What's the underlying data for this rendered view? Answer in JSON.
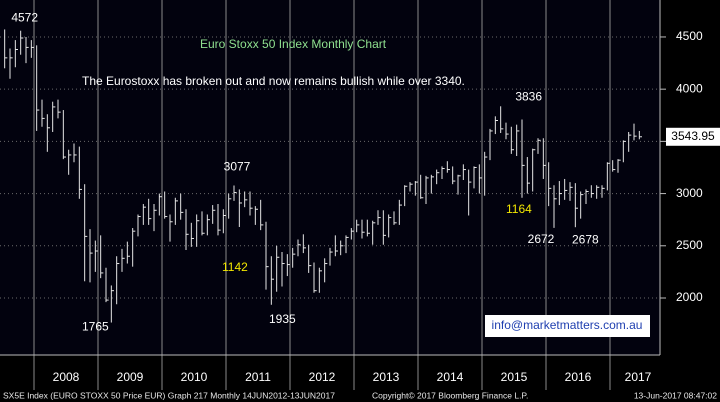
{
  "chart_data": {
    "type": "hlc",
    "title": "Euro Stoxx 50 Index Monthly Chart",
    "annotations": [
      "The Eurostoxx has broken out and now remains bullish while over 3340.",
      "1142",
      "1164"
    ],
    "color": "#e6e6e6",
    "categories": [
      null,
      null,
      null,
      null,
      null,
      null,
      "2008",
      null,
      null,
      null,
      null,
      null,
      null,
      null,
      null,
      null,
      null,
      null,
      "2009",
      null,
      null,
      null,
      null,
      null,
      null,
      null,
      null,
      null,
      null,
      null,
      "2010",
      null,
      null,
      null,
      null,
      null,
      null,
      null,
      null,
      null,
      null,
      null,
      "2011",
      null,
      null,
      null,
      null,
      null,
      null,
      null,
      null,
      null,
      null,
      null,
      "2012",
      null,
      null,
      null,
      null,
      null,
      null,
      null,
      null,
      null,
      null,
      null,
      "2013",
      null,
      null,
      null,
      null,
      null,
      null,
      null,
      null,
      null,
      null,
      null,
      "2014",
      null,
      null,
      null,
      null,
      null,
      null,
      null,
      null,
      null,
      null,
      null,
      "2015",
      null,
      null,
      null,
      null,
      null,
      null,
      null,
      null,
      null,
      null,
      null,
      "2016",
      null,
      null,
      null,
      null,
      null,
      null,
      null,
      null,
      null,
      null,
      null,
      "2017",
      null,
      null,
      null,
      null,
      null
    ],
    "high": [
      4572,
      4390,
      4470,
      4560,
      4500,
      4470,
      4420,
      3900,
      3760,
      3880,
      3900,
      3800,
      3420,
      3480,
      3450,
      3090,
      2660,
      2550,
      2600,
      2290,
      2120,
      2400,
      2470,
      2540,
      2670,
      2800,
      2900,
      2950,
      2900,
      3000,
      3020,
      2800,
      2960,
      3000,
      2850,
      2720,
      2800,
      2830,
      2800,
      2890,
      2900,
      2850,
      3000,
      3077,
      3040,
      3020,
      3020,
      2880,
      2940,
      2730,
      2400,
      2500,
      2440,
      2420,
      2480,
      2560,
      2610,
      2510,
      2340,
      2290,
      2380,
      2480,
      2600,
      2550,
      2600,
      2670,
      2750,
      2750,
      2750,
      2740,
      2840,
      2840,
      2800,
      2830,
      2940,
      3080,
      3110,
      3120,
      3180,
      3170,
      3180,
      3230,
      3260,
      3310,
      3260,
      3180,
      3280,
      3230,
      3260,
      3280,
      3400,
      3620,
      3740,
      3836,
      3680,
      3640,
      3660,
      3710,
      3350,
      3430,
      3530,
      3530,
      3300,
      3080,
      3120,
      3140,
      3110,
      3100,
      3020,
      3040,
      3080,
      3080,
      3080,
      3300,
      3320,
      3330,
      3510,
      3590,
      3670,
      3600
    ],
    "low": [
      4200,
      4100,
      4210,
      4330,
      4250,
      4300,
      3600,
      3640,
      3400,
      3590,
      3720,
      3330,
      3180,
      3300,
      2950,
      2160,
      2150,
      2250,
      2190,
      1960,
      1765,
      1940,
      2250,
      2330,
      2300,
      2590,
      2700,
      2700,
      2640,
      2790,
      2760,
      2540,
      2700,
      2750,
      2460,
      2490,
      2490,
      2600,
      2600,
      2710,
      2600,
      2620,
      2760,
      2930,
      2680,
      2870,
      2790,
      2700,
      2650,
      2080,
      1935,
      2060,
      2110,
      2210,
      2290,
      2400,
      2430,
      2240,
      2050,
      2050,
      2150,
      2310,
      2400,
      2410,
      2430,
      2560,
      2630,
      2570,
      2590,
      2510,
      2700,
      2510,
      2580,
      2700,
      2700,
      2880,
      3020,
      2980,
      2950,
      2900,
      3000,
      3090,
      3140,
      3200,
      3090,
      2990,
      3130,
      2790,
      3050,
      3000,
      2980,
      3320,
      3570,
      3580,
      3520,
      3380,
      3360,
      2960,
      3000,
      3020,
      3380,
      3140,
      2880,
      2672,
      2890,
      2940,
      2930,
      2678,
      2760,
      2900,
      2960,
      2950,
      2960,
      3030,
      3210,
      3200,
      3300,
      3400,
      3510,
      3520
    ],
    "close": [
      4300,
      4300,
      4380,
      4490,
      4400,
      4400,
      3800,
      3720,
      3630,
      3830,
      3780,
      3350,
      3370,
      3370,
      3040,
      2590,
      2430,
      2450,
      2240,
      1980,
      2070,
      2330,
      2380,
      2400,
      2640,
      2780,
      2870,
      2760,
      2840,
      2970,
      2780,
      2730,
      2930,
      2820,
      2610,
      2570,
      2740,
      2620,
      2750,
      2840,
      2650,
      2790,
      2950,
      3010,
      2910,
      2940,
      2860,
      2850,
      2700,
      2300,
      2180,
      2390,
      2330,
      2320,
      2420,
      2510,
      2480,
      2310,
      2070,
      2260,
      2330,
      2440,
      2450,
      2500,
      2580,
      2640,
      2700,
      2630,
      2620,
      2720,
      2770,
      2600,
      2770,
      2720,
      2890,
      3070,
      3090,
      3110,
      2960,
      3150,
      3160,
      3200,
      3240,
      3230,
      3120,
      3170,
      3230,
      3110,
      3250,
      3150,
      3350,
      3600,
      3700,
      3620,
      3570,
      3420,
      3600,
      3270,
      3100,
      3420,
      3510,
      3270,
      3050,
      2950,
      3000,
      3030,
      3060,
      2860,
      2990,
      3020,
      3000,
      3060,
      3050,
      3290,
      3230,
      3320,
      3500,
      3560,
      3550,
      3543.95
    ],
    "ylim": [
      1454,
      4854
    ],
    "yticks": [
      2000,
      2500,
      3000,
      3500,
      4000,
      4500
    ],
    "grid": true
  },
  "contact": "info@marketmatters.com.au",
  "footer": {
    "left": "SX5E Index (EURO STOXX 50 Price EUR) Graph 217  Monthly 14JUN2012-13JUN2017",
    "center": "Copyright© 2017 Bloomberg Finance L.P.",
    "right": "13-Jun-2017 08:47:02"
  }
}
